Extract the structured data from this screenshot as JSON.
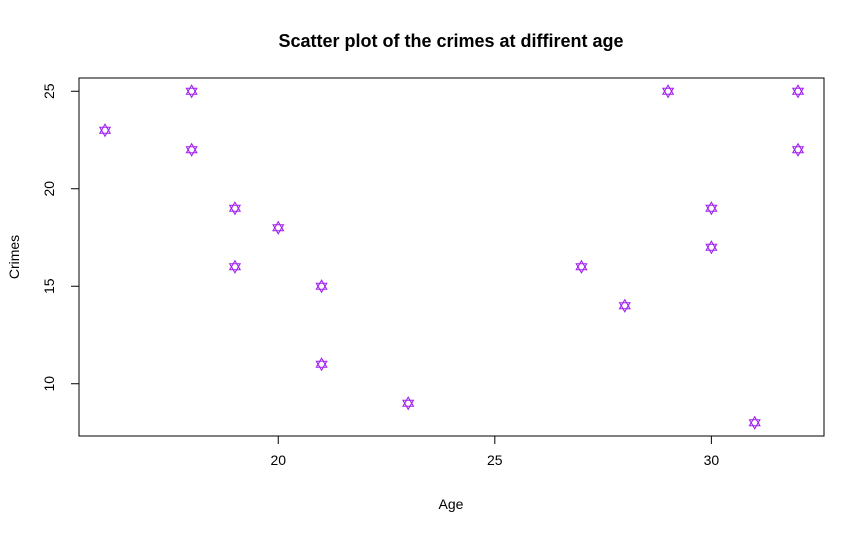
{
  "chart_data": {
    "type": "scatter",
    "title": "Scatter plot of the crimes at diffirent age",
    "xlabel": "Age",
    "ylabel": "Crimes",
    "xlim": [
      15.4,
      32.6
    ],
    "ylim": [
      7.32,
      25.68
    ],
    "xticks": [
      20,
      25,
      30
    ],
    "yticks": [
      10,
      15,
      20,
      25
    ],
    "x_tick_labels": [
      "20",
      "25",
      "30"
    ],
    "y_tick_labels": [
      "10",
      "15",
      "20",
      "25"
    ],
    "marker": "hexagram-outline",
    "marker_color": "#a020f0",
    "grid": false,
    "legend": "none",
    "series": [
      {
        "x": [
          16,
          18,
          18,
          19,
          19,
          20,
          21,
          21,
          23,
          27,
          28,
          29,
          30,
          30,
          31,
          32,
          32
        ],
        "y": [
          23,
          25,
          22,
          19,
          16,
          18,
          15,
          11,
          9,
          16,
          14,
          25,
          19,
          17,
          8,
          25,
          22
        ]
      }
    ]
  }
}
